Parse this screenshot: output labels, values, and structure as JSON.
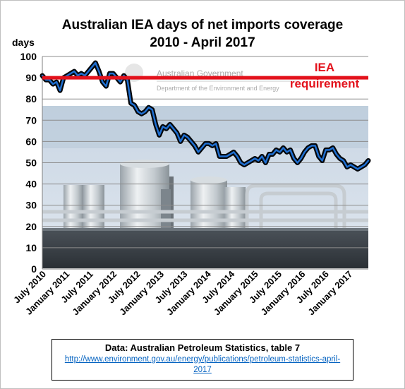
{
  "chart_data": {
    "type": "line",
    "title": "Australian  IEA days of net imports coverage",
    "subtitle": "2010 - April 2017",
    "ylabel": "days",
    "ylim": [
      0,
      100
    ],
    "yticks": [
      0,
      10,
      20,
      30,
      40,
      50,
      60,
      70,
      80,
      90,
      100
    ],
    "xtick_labels": [
      "July 2010",
      "January 2011",
      "July 2011",
      "January 2012",
      "July 2012",
      "January 2013",
      "July 2013",
      "January 2014",
      "July 2014",
      "January 2015",
      "July 2015",
      "January 2016",
      "July 2016",
      "January 2017"
    ],
    "series": [
      {
        "values": [
          91,
          89,
          89,
          87,
          88,
          84,
          90,
          91,
          92,
          93,
          91,
          92,
          91,
          93,
          95,
          97,
          93,
          88,
          86,
          92,
          92,
          90,
          88,
          91,
          89,
          78,
          77,
          74,
          73,
          74,
          76,
          75,
          68,
          63,
          67,
          66,
          68,
          66,
          64,
          60,
          63,
          62,
          60,
          58,
          55,
          57,
          59,
          59,
          58,
          59,
          53,
          53,
          53,
          54,
          55,
          53,
          50,
          49,
          50,
          51,
          52,
          51,
          53,
          50,
          54,
          54,
          56,
          55,
          57,
          55,
          56,
          52,
          50,
          52,
          55,
          57,
          58,
          58,
          53,
          51,
          56,
          56,
          57,
          54,
          52,
          51,
          48,
          49,
          48,
          47,
          48,
          49,
          51
        ],
        "color": "#0a2540"
      }
    ],
    "reference_line": {
      "value": 90,
      "label": [
        "IEA",
        "requirement"
      ],
      "color": "#e3121c"
    },
    "logo_text": [
      "Australian Government",
      "Department of the Environment and Energy"
    ],
    "grid": true,
    "legend": "none"
  },
  "source": {
    "text": "Data: Australian Petroleum Statistics, table 7",
    "link": "http://www.environment.gov.au/energy/publications/petroleum-statistics-april-2017"
  }
}
